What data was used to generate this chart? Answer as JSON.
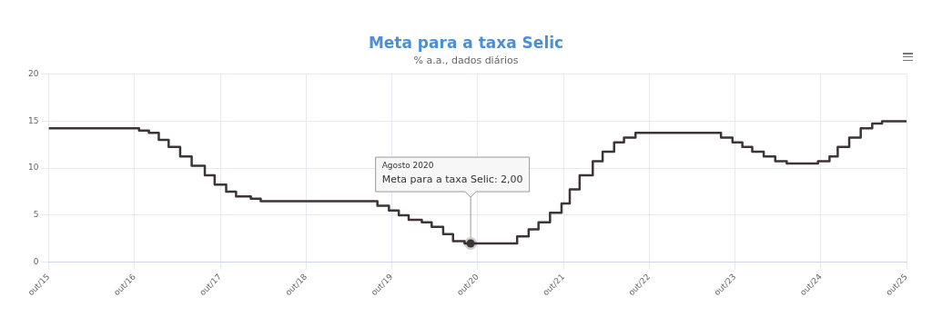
{
  "chart_data": {
    "type": "step",
    "title": "Meta para a taxa Selic",
    "subtitle": "% a.a., dados diários",
    "series": [
      {
        "color": "#3d3436",
        "x": [
          "2015-10-01",
          "2016-10-20",
          "2016-12-01",
          "2017-01-12",
          "2017-02-23",
          "2017-04-13",
          "2017-06-01",
          "2017-07-27",
          "2017-09-07",
          "2017-10-26",
          "2017-12-07",
          "2018-02-08",
          "2018-03-22",
          "2019-08-01",
          "2019-09-19",
          "2019-10-31",
          "2019-12-12",
          "2020-02-06",
          "2020-03-19",
          "2020-05-07",
          "2020-06-18",
          "2020-08-06",
          "2021-03-18",
          "2021-05-06",
          "2021-06-17",
          "2021-08-05",
          "2021-09-23",
          "2021-10-28",
          "2021-12-09",
          "2022-02-03",
          "2022-03-17",
          "2022-05-05",
          "2022-06-16",
          "2022-08-04",
          "2023-08-03",
          "2023-09-21",
          "2023-11-02",
          "2023-12-14",
          "2024-02-01",
          "2024-03-21",
          "2024-05-09",
          "2024-09-19",
          "2024-11-07",
          "2024-12-12",
          "2025-01-30",
          "2025-03-20",
          "2025-05-08",
          "2025-06-19",
          "2025-10-01"
        ],
        "values": [
          14.25,
          14,
          13.75,
          13,
          12.25,
          11.25,
          10.25,
          9.25,
          8.25,
          7.5,
          7,
          6.75,
          6.5,
          6,
          5.5,
          5,
          4.5,
          4.25,
          3.75,
          3,
          2.25,
          2,
          2.75,
          3.5,
          4.25,
          5.25,
          6.25,
          7.75,
          9.25,
          10.75,
          11.75,
          12.75,
          13.25,
          13.75,
          13.25,
          12.75,
          12.25,
          11.75,
          11.25,
          10.75,
          10.5,
          10.75,
          11.25,
          12.25,
          13.25,
          14.25,
          14.75,
          15,
          15
        ]
      }
    ],
    "xlim": [
      "2015-10-01",
      "2025-10-01"
    ],
    "xticks": [
      {
        "value": "2015-10-01",
        "label": "out/15"
      },
      {
        "value": "2016-10-01",
        "label": "out/16"
      },
      {
        "value": "2017-10-01",
        "label": "out/17"
      },
      {
        "value": "2018-10-01",
        "label": "out/18"
      },
      {
        "value": "2019-10-01",
        "label": "out/19"
      },
      {
        "value": "2020-10-01",
        "label": "out/20"
      },
      {
        "value": "2021-10-01",
        "label": "out/21"
      },
      {
        "value": "2022-10-01",
        "label": "out/22"
      },
      {
        "value": "2023-10-01",
        "label": "out/23"
      },
      {
        "value": "2024-10-01",
        "label": "out/24"
      },
      {
        "value": "2025-10-01",
        "label": "out/25"
      }
    ],
    "ylim": [
      0,
      20
    ],
    "yticks": [
      0,
      5,
      10,
      15,
      20
    ],
    "grid": true,
    "legend": false,
    "marker": "none",
    "line_style": "solid",
    "annotations": [
      {
        "text": "Agosto 2020\nMeta para a taxa Selic: 2,00",
        "x": "2020-09-01",
        "y": 2
      }
    ]
  }
}
